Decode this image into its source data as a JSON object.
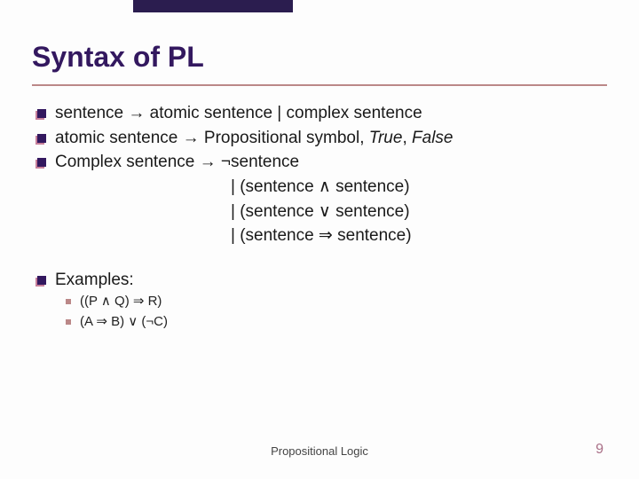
{
  "decor": {
    "top_bar_color": "#2b1d4f"
  },
  "title": "Syntax of PL",
  "rules": {
    "r1": "sentence → atomic sentence | complex sentence",
    "r2_pre": "atomic sentence → Propositional symbol, ",
    "r2_true": "True",
    "r2_sep": ", ",
    "r2_false": "False",
    "r3": "Complex sentence → ¬sentence",
    "r3a": "| (sentence ∧ sentence)",
    "r3b": "| (sentence ∨ sentence)",
    "r3c": "| (sentence ⇒ sentence)"
  },
  "examples_label": "Examples:",
  "examples": {
    "e1": "((P ∧ Q) ⇒ R)",
    "e2": "(A ⇒ B) ∨ (¬C)"
  },
  "footer": {
    "center": "Propositional Logic",
    "page": "9"
  }
}
